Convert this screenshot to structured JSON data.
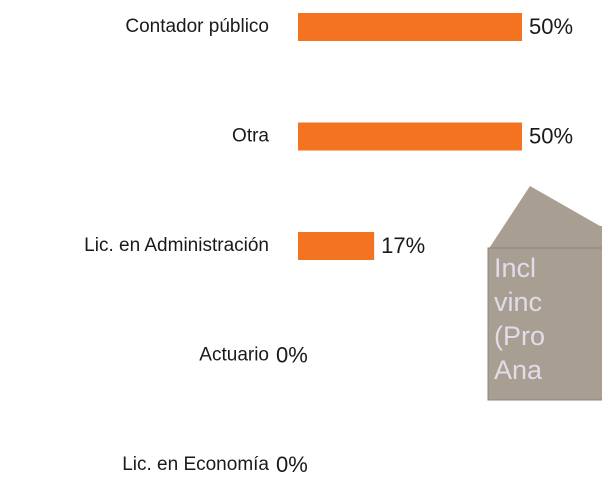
{
  "chart_data": {
    "type": "bar",
    "orientation": "horizontal",
    "categories": [
      "Contador público",
      "Otra",
      "Lic. en Administración",
      "Actuario",
      "Lic. en Economía"
    ],
    "values": [
      50,
      50,
      17,
      0,
      0
    ],
    "value_labels": [
      "50%",
      "50%",
      "17%",
      "0%",
      "0%"
    ],
    "color": "#f47321",
    "xlim": [
      0,
      100
    ],
    "annotation": [
      "Incl",
      "vinc",
      "(Pro",
      "Ana"
    ]
  }
}
